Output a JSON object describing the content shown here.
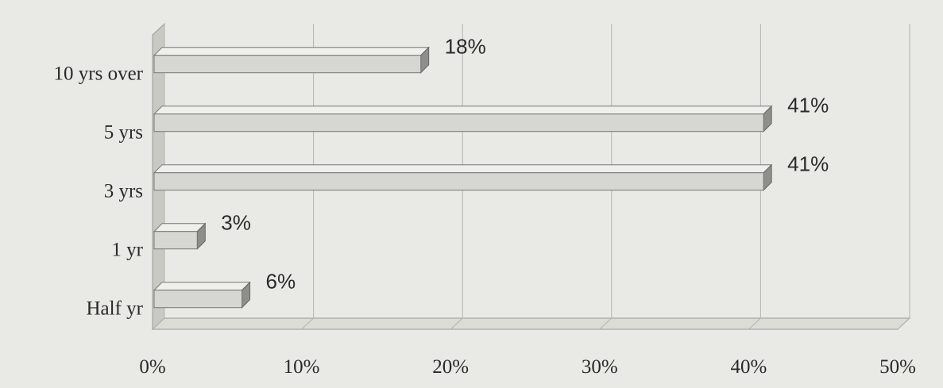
{
  "chart_data": {
    "type": "bar",
    "orientation": "horizontal",
    "style": "3d",
    "categories": [
      "10 yrs over",
      "5 yrs",
      "3 yrs",
      "1 yr",
      "Half yr"
    ],
    "values": [
      18,
      41,
      41,
      3,
      6
    ],
    "data_labels": [
      "18%",
      "41%",
      "41%",
      "3%",
      "6%"
    ],
    "x_ticks": [
      "0%",
      "10%",
      "20%",
      "30%",
      "40%",
      "50%"
    ],
    "xlim": [
      0,
      50
    ],
    "grid": true,
    "legend": "none",
    "title": "",
    "xlabel": "",
    "ylabel": ""
  },
  "colors": {
    "background": "#e9e9e5",
    "plot_floor": "#dcdcd6",
    "bar_front": "#d6d6d2",
    "bar_top": "#efefeb",
    "bar_side": "#8e8e8a",
    "grid": "#b5b5b0",
    "text": "#2a2a2a"
  }
}
